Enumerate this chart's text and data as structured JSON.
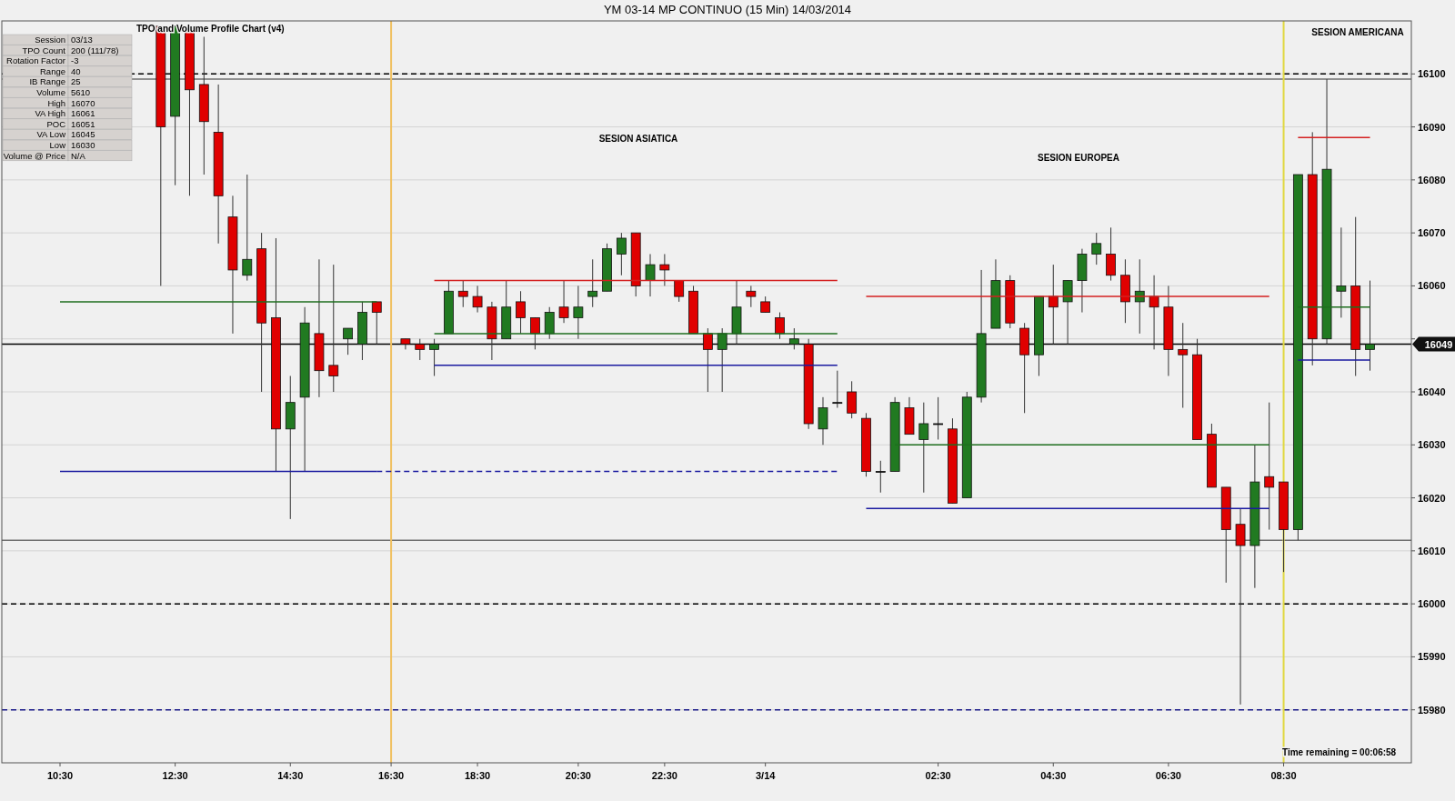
{
  "chart_data": {
    "type": "candlestick",
    "title": "YM 03-14 MP CONTINUO (15 Min)  14/03/2014",
    "subtitle": "TPO and Volume Profile Chart (v4)",
    "categories": [
      "10:30",
      null,
      null,
      null,
      null,
      null,
      null,
      null,
      "12:30",
      null,
      null,
      null,
      null,
      null,
      null,
      null,
      "14:30",
      null,
      null,
      null,
      null,
      null,
      null,
      "16:30",
      null,
      null,
      null,
      null,
      null,
      "18:30",
      null,
      null,
      null,
      null,
      null,
      null,
      "20:30",
      null,
      null,
      null,
      null,
      null,
      "22:30",
      null,
      null,
      null,
      null,
      null,
      null,
      "3/14",
      null,
      null,
      null,
      null,
      null,
      null,
      null,
      null,
      null,
      null,
      null,
      "02:30",
      null,
      null,
      null,
      null,
      null,
      null,
      null,
      "04:30",
      null,
      null,
      null,
      null,
      null,
      null,
      null,
      "06:30",
      null,
      null,
      null,
      null,
      null,
      null,
      null,
      "08:30",
      null,
      null,
      null,
      null,
      null,
      null
    ],
    "ohlc": [
      null,
      null,
      null,
      null,
      null,
      null,
      null,
      [
        16109,
        16109,
        16060,
        16090
      ],
      [
        16092,
        16109,
        16079,
        16109
      ],
      [
        16108,
        16108,
        16077,
        16097
      ],
      [
        16098,
        16107,
        16081,
        16091
      ],
      [
        16089,
        16098,
        16068,
        16077
      ],
      [
        16073,
        16077,
        16051,
        16063
      ],
      [
        16062,
        16081,
        16061,
        16065
      ],
      [
        16067,
        16070,
        16040,
        16053
      ],
      [
        16054,
        16069,
        16025,
        16033
      ],
      [
        16033,
        16043,
        16016,
        16038
      ],
      [
        16039,
        16056,
        16025,
        16053
      ],
      [
        16051,
        16065,
        16039,
        16044
      ],
      [
        16045,
        16064,
        16040,
        16043
      ],
      [
        16050,
        16052,
        16047,
        16052
      ],
      [
        16049,
        16057,
        16046,
        16055
      ],
      [
        16057,
        16057,
        16049,
        16055
      ],
      null,
      [
        16050,
        16050,
        16048,
        16049
      ],
      [
        16049,
        16050,
        16046,
        16048
      ],
      [
        16048,
        16050,
        16043,
        16049
      ],
      [
        16051,
        16061,
        16051,
        16059
      ],
      [
        16059,
        16061,
        16056,
        16058
      ],
      [
        16058,
        16060,
        16055,
        16056
      ],
      [
        16056,
        16057,
        16046,
        16050
      ],
      [
        16050,
        16061,
        16050,
        16056
      ],
      [
        16057,
        16059,
        16051,
        16054
      ],
      [
        16054,
        16054,
        16048,
        16051
      ],
      [
        16051,
        16056,
        16050,
        16055
      ],
      [
        16056,
        16061,
        16053,
        16054
      ],
      [
        16054,
        16060,
        16050,
        16056
      ],
      [
        16058,
        16065,
        16056,
        16059
      ],
      [
        16059,
        16068,
        16059,
        16067
      ],
      [
        16066,
        16070,
        16062,
        16069
      ],
      [
        16070,
        16070,
        16058,
        16060
      ],
      [
        16061,
        16066,
        16058,
        16064
      ],
      [
        16064,
        16066,
        16060,
        16063
      ],
      [
        16061,
        16061,
        16057,
        16058
      ],
      [
        16059,
        16060,
        16051,
        16051
      ],
      [
        16051,
        16052,
        16040,
        16048
      ],
      [
        16048,
        16052,
        16040,
        16051
      ],
      [
        16051,
        16061,
        16049,
        16056
      ],
      [
        16059,
        16060,
        16056,
        16058
      ],
      [
        16057,
        16058,
        16055,
        16055
      ],
      [
        16054,
        16055,
        16050,
        16051
      ],
      [
        16049,
        16052,
        16048,
        16050
      ],
      [
        16049,
        16050,
        16033,
        16034
      ],
      [
        16033,
        16039,
        16030,
        16037
      ],
      [
        16038,
        16044,
        16037,
        16038
      ],
      [
        16040,
        16042,
        16035,
        16036
      ],
      [
        16035,
        16036,
        16024,
        16025
      ],
      [
        16025,
        16027,
        16021,
        16025
      ],
      [
        16025,
        16039,
        16025,
        16038
      ],
      [
        16037,
        16039,
        16032,
        16032
      ],
      [
        16031,
        16038,
        16021,
        16034
      ],
      [
        16034,
        16039,
        16031,
        16034
      ],
      [
        16033,
        16035,
        16019,
        16019
      ],
      [
        16020,
        16040,
        16020,
        16039
      ],
      [
        16039,
        16063,
        16038,
        16051
      ],
      [
        16052,
        16065,
        16052,
        16061
      ],
      [
        16061,
        16062,
        16052,
        16053
      ],
      [
        16052,
        16053,
        16036,
        16047
      ],
      [
        16047,
        16058,
        16043,
        16058
      ],
      [
        16058,
        16064,
        16049,
        16056
      ],
      [
        16057,
        16061,
        16049,
        16061
      ],
      [
        16061,
        16067,
        16055,
        16066
      ],
      [
        16066,
        16070,
        16064,
        16068
      ],
      [
        16066,
        16071,
        16061,
        16062
      ],
      [
        16062,
        16065,
        16053,
        16057
      ],
      [
        16057,
        16065,
        16051,
        16059
      ],
      [
        16058,
        16062,
        16048,
        16056
      ],
      [
        16056,
        16060,
        16043,
        16048
      ],
      [
        16048,
        16053,
        16037,
        16047
      ],
      [
        16047,
        16050,
        16031,
        16031
      ],
      [
        16032,
        16034,
        16022,
        16022
      ],
      [
        16022,
        16022,
        16004,
        16014
      ],
      [
        16015,
        16018,
        15981,
        16011
      ],
      [
        16011,
        16030,
        16003,
        16023
      ],
      [
        16024,
        16038,
        16014,
        16022
      ],
      [
        16023,
        16023,
        16006,
        16014
      ],
      [
        16014,
        16081,
        16012,
        16081
      ],
      [
        16081,
        16089,
        16045,
        16050
      ],
      [
        16050,
        16099,
        16049,
        16082
      ],
      [
        16059,
        16071,
        16054,
        16060
      ],
      [
        16060,
        16073,
        16043,
        16048
      ],
      [
        16048,
        16061,
        16044,
        16049
      ]
    ],
    "colors": [
      null,
      null,
      null,
      null,
      null,
      null,
      null,
      "#e00000",
      "#217a21",
      "#e00000",
      "#e00000",
      "#e00000",
      "#e00000",
      "#217a21",
      "#e00000",
      "#e00000",
      "#217a21",
      "#217a21",
      "#e00000",
      "#e00000",
      "#217a21",
      "#217a21",
      "#e00000",
      null,
      "#e00000",
      "#e00000",
      "#217a21",
      "#217a21",
      "#e00000",
      "#e00000",
      "#e00000",
      "#217a21",
      "#e00000",
      "#e00000",
      "#217a21",
      "#e00000",
      "#217a21",
      "#217a21",
      "#217a21",
      "#217a21",
      "#e00000",
      "#217a21",
      "#e00000",
      "#e00000",
      "#e00000",
      "#e00000",
      "#217a21",
      "#217a21",
      "#e00000",
      "#e00000",
      "#e00000",
      "#217a21",
      "#e00000",
      "#217a21",
      "#000000",
      "#e00000",
      "#e00000",
      "#000000",
      "#217a21",
      "#e00000",
      "#217a21",
      "#000000",
      "#e00000",
      "#217a21",
      "#217a21",
      "#217a21",
      "#e00000",
      "#e00000",
      "#217a21",
      "#e00000",
      "#217a21",
      "#217a21",
      "#217a21",
      "#e00000",
      "#e00000",
      "#217a21",
      "#e00000",
      "#e00000",
      "#e00000",
      "#e00000",
      "#e00000",
      "#e00000",
      "#e00000",
      "#217a21",
      "#e00000",
      "#e00000",
      "#217a21",
      "#e00000",
      "#217a21",
      "#217a21",
      "#e00000",
      "#217a21"
    ],
    "series": [
      {
        "type": "line",
        "color": "#d42020",
        "values": [
          null,
          null,
          null,
          null,
          null,
          null,
          null,
          null,
          null,
          null,
          null,
          null,
          null,
          null,
          null,
          null,
          null,
          null,
          null,
          null,
          null,
          null,
          null,
          null,
          null,
          null,
          16061,
          16061,
          16061,
          16061,
          16061,
          16061,
          16061,
          16061,
          16061,
          16061,
          16061,
          16061,
          16061,
          16061,
          16061,
          16061,
          16061,
          16061,
          16061,
          16061,
          16061,
          16061,
          16061,
          16061,
          16061,
          16061,
          16061,
          16061,
          16061,
          null,
          16058,
          16058,
          16058,
          16058,
          16058,
          16058,
          16058,
          16058,
          16058,
          16058,
          16058,
          16058,
          16058,
          16058,
          16058,
          16058,
          16058,
          16058,
          16058,
          16058,
          16058,
          16058,
          16058,
          16058,
          16058,
          16058,
          16058,
          16058,
          16058,
          null,
          16088,
          16088,
          16088,
          16088,
          16088,
          16088
        ]
      },
      {
        "type": "line",
        "color": "#1e6e1e",
        "values": [
          16057,
          16057,
          16057,
          16057,
          16057,
          16057,
          16057,
          16057,
          16057,
          16057,
          16057,
          16057,
          16057,
          16057,
          16057,
          16057,
          16057,
          16057,
          16057,
          16057,
          16057,
          16057,
          16057,
          null,
          null,
          null,
          16051,
          16051,
          16051,
          16051,
          16051,
          16051,
          16051,
          16051,
          16051,
          16051,
          16051,
          16051,
          16051,
          16051,
          16051,
          16051,
          16051,
          16051,
          16051,
          16051,
          16051,
          16051,
          16051,
          16051,
          16051,
          16051,
          16051,
          16051,
          16051,
          null,
          null,
          null,
          16030,
          16030,
          16030,
          16030,
          16030,
          16030,
          16030,
          16030,
          16030,
          16030,
          16030,
          16030,
          16030,
          16030,
          16030,
          16030,
          16030,
          16030,
          16030,
          16030,
          16030,
          16030,
          16030,
          16030,
          16030,
          16030,
          16030,
          null,
          16056,
          16056,
          16056,
          16056,
          16056,
          16056
        ]
      },
      {
        "type": "line",
        "color": "#1a1aa0",
        "values": [
          16025,
          16025,
          16025,
          16025,
          16025,
          16025,
          16025,
          16025,
          16025,
          16025,
          16025,
          16025,
          16025,
          16025,
          16025,
          16025,
          16025,
          16025,
          16025,
          16025,
          16025,
          16025,
          16025,
          null,
          null,
          null,
          16045,
          16045,
          16045,
          16045,
          16045,
          16045,
          16045,
          16045,
          16045,
          16045,
          16045,
          16045,
          16045,
          16045,
          16045,
          16045,
          16045,
          16045,
          16045,
          16045,
          16045,
          16045,
          16045,
          16045,
          16045,
          16045,
          16045,
          16045,
          16045,
          null,
          16018,
          16018,
          16018,
          16018,
          16018,
          16018,
          16018,
          16018,
          16018,
          16018,
          16018,
          16018,
          16018,
          16018,
          16018,
          16018,
          16018,
          16018,
          16018,
          16018,
          16018,
          16018,
          16018,
          16018,
          16018,
          16018,
          16018,
          16018,
          16018,
          null,
          16046,
          16046,
          16046,
          16046,
          16046,
          16046
        ]
      },
      {
        "type": "line",
        "color": "#1a1aa0",
        "line_style": "dashed",
        "values": [
          null,
          null,
          null,
          null,
          null,
          null,
          null,
          null,
          null,
          null,
          null,
          null,
          null,
          null,
          null,
          null,
          null,
          null,
          null,
          null,
          null,
          null,
          16025,
          16025,
          16025,
          16025,
          16025,
          16025,
          16025,
          16025,
          16025,
          16025,
          16025,
          16025,
          16025,
          16025,
          16025,
          16025,
          16025,
          16025,
          16025,
          16025,
          16025,
          16025,
          16025,
          16025,
          16025,
          16025,
          16025,
          16025,
          16025,
          16025,
          16025,
          16025,
          16025,
          null,
          null,
          null,
          null,
          null,
          null,
          null,
          null,
          null,
          null,
          null,
          null,
          null,
          null,
          null,
          null,
          null,
          null,
          null,
          null,
          null,
          null,
          null,
          null,
          null,
          null,
          null,
          null,
          null,
          null,
          null,
          null,
          null,
          null,
          null,
          null,
          null
        ]
      }
    ],
    "ylim": [
      15970,
      16110
    ],
    "yticks": [
      15980,
      15990,
      16000,
      16010,
      16020,
      16030,
      16040,
      {
        "value": 16050,
        "label": null
      },
      16060,
      16070,
      16080,
      16090,
      16100
    ],
    "grid": "y",
    "ref_lines": [
      {
        "axis": "y",
        "value": 16100,
        "color": "#000000",
        "line_style": "dashed"
      },
      {
        "axis": "y",
        "value": 16099,
        "color": "#707070",
        "line_style": "solid"
      },
      {
        "axis": "y",
        "value": 16049,
        "color": "#000000",
        "line_style": "solid",
        "label": "16049"
      },
      {
        "axis": "y",
        "value": 16012,
        "color": "#707070",
        "line_style": "solid"
      },
      {
        "axis": "y",
        "value": 16000,
        "color": "#000000",
        "line_style": "dashed"
      },
      {
        "axis": "y",
        "value": 15980,
        "color": "#1a1a8a",
        "line_style": "dashed"
      },
      {
        "axis": "x",
        "value": "16:30",
        "color": "#f0c060",
        "line_style": "solid"
      },
      {
        "axis": "x",
        "value": "08:30",
        "color": "#e0d840",
        "line_style": "solid"
      }
    ],
    "annotations": [
      "Session",
      "03/13",
      "TPO Count",
      "200 (111/78)",
      "Rotation Factor",
      "-3",
      "Range",
      "40",
      "IB Range",
      "25",
      "Volume",
      "5610",
      "High",
      "16070",
      "VA High",
      "16061",
      "POC",
      "16051",
      "VA Low",
      "16045",
      "Low",
      "16030",
      "Volume @ Price",
      "N/A",
      "SESION ASIATICA",
      "SESION EUROPEA",
      "SESION AMERICANA",
      "Time remaining = 00:06:58"
    ]
  }
}
